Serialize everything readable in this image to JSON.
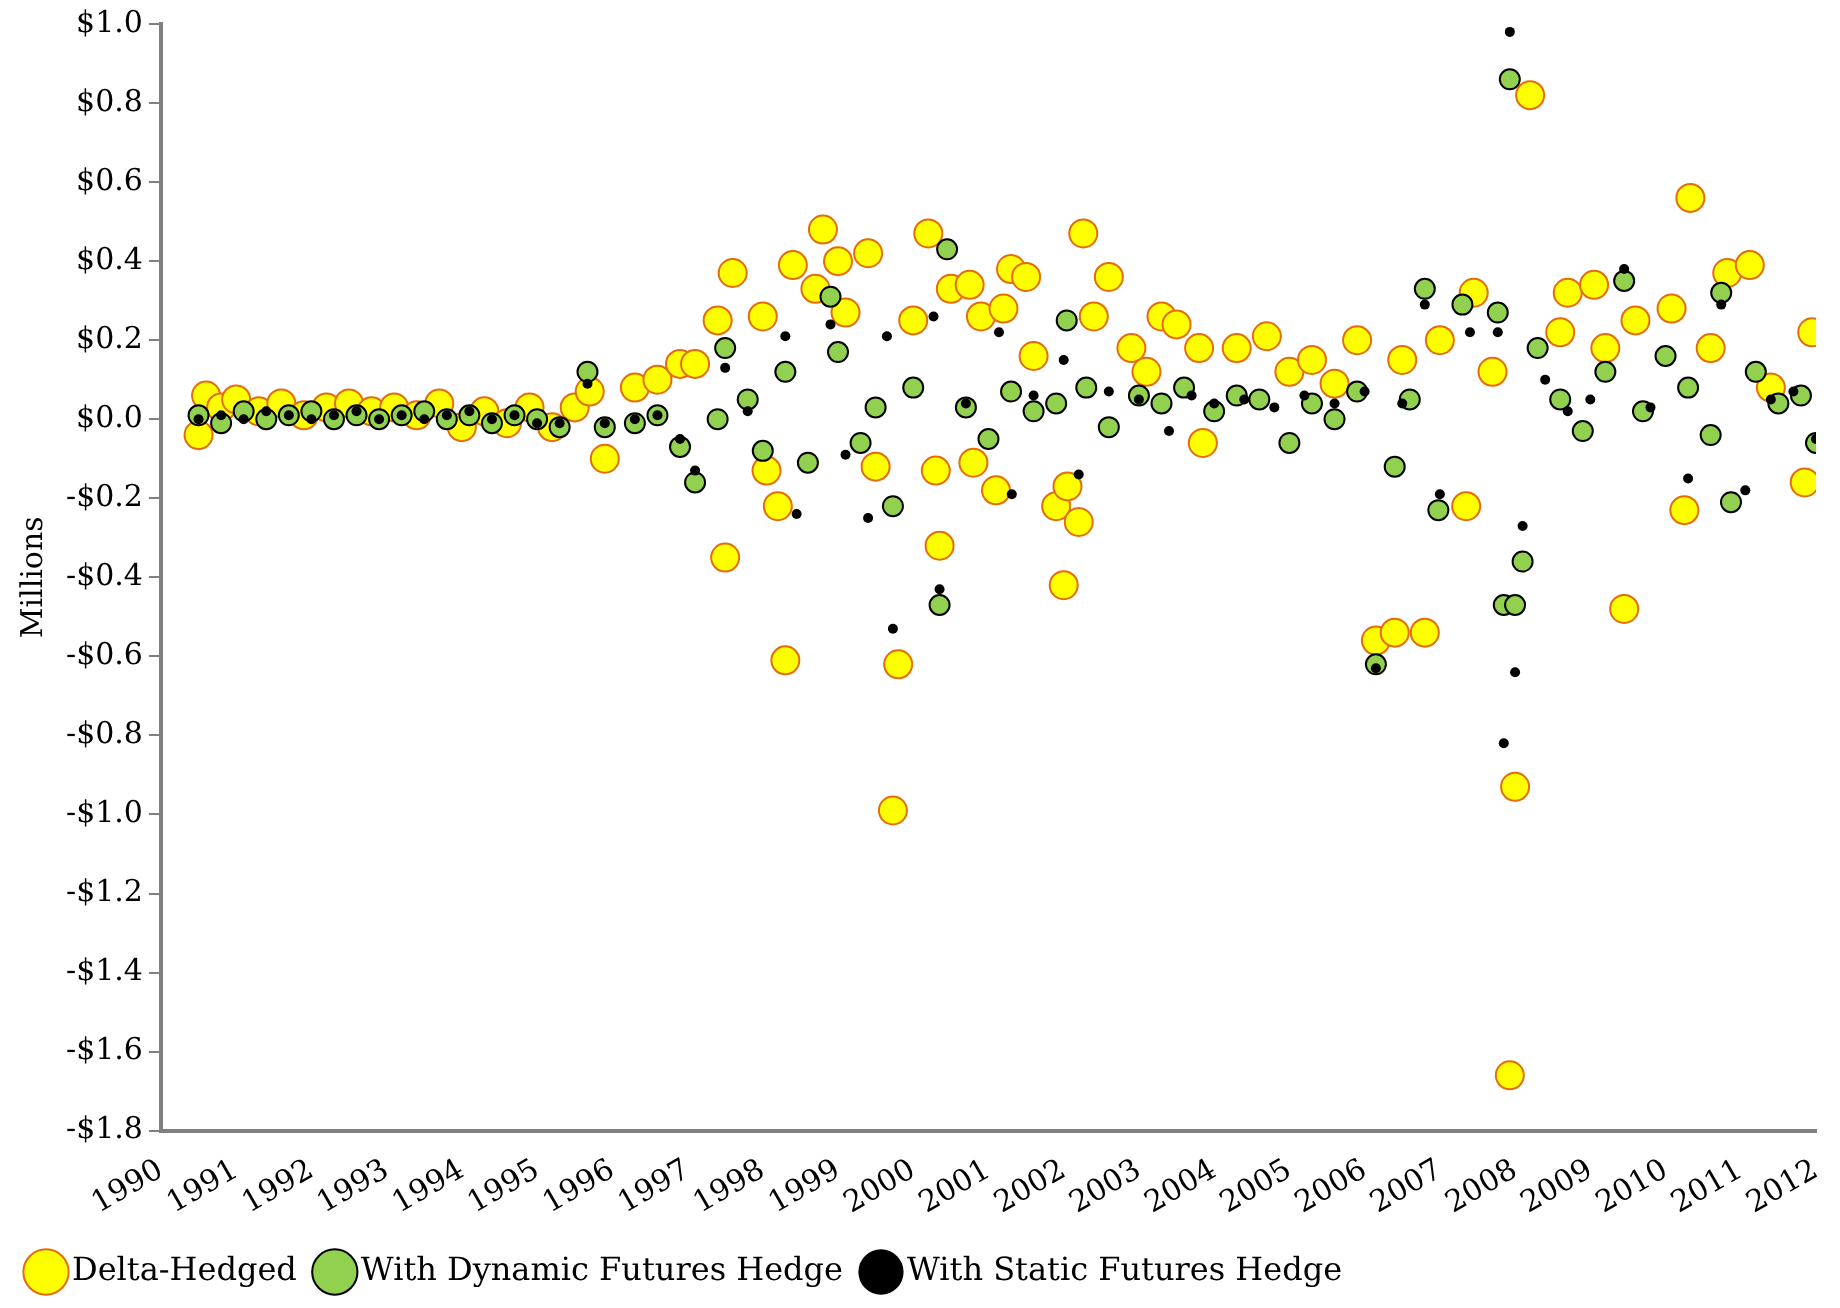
{
  "chart_data": {
    "type": "scatter",
    "ylabel": "Millions",
    "xlim": [
      1990,
      2012
    ],
    "xticks": [
      1990,
      1991,
      1992,
      1993,
      1994,
      1995,
      1996,
      1997,
      1998,
      1999,
      2000,
      2001,
      2002,
      2003,
      2004,
      2005,
      2006,
      2007,
      2008,
      2009,
      2010,
      2011,
      2012
    ],
    "ylim": [
      -1.8,
      1.0
    ],
    "yticks": [
      {
        "value": 1.0,
        "label": "$1.0"
      },
      {
        "value": 0.8,
        "label": "$0.8"
      },
      {
        "value": 0.6,
        "label": "$0.6"
      },
      {
        "value": 0.4,
        "label": "$0.4"
      },
      {
        "value": 0.2,
        "label": "$0.2"
      },
      {
        "value": 0,
        "label": "$0.0"
      },
      {
        "value": -0.2,
        "label": "-$0.2"
      },
      {
        "value": -0.4,
        "label": "-$0.4"
      },
      {
        "value": -0.6,
        "label": "-$0.6"
      },
      {
        "value": -0.8,
        "label": "-$0.8"
      },
      {
        "value": -1.0,
        "label": "-$1.0"
      },
      {
        "value": -1.2,
        "label": "-$1.2"
      },
      {
        "value": -1.4,
        "label": "-$1.4"
      },
      {
        "value": -1.6,
        "label": "-$1.6"
      },
      {
        "value": -1.8,
        "label": "-$1.8"
      }
    ],
    "grid": false,
    "legend": "bottom",
    "marker": "circle",
    "series": [
      {
        "name": "Delta-Hedged",
        "color": "#ffff00",
        "x": [
          1990.5,
          1990.6,
          1990.8,
          1991.0,
          1991.3,
          1991.6,
          1991.9,
          1992.2,
          1992.5,
          1992.8,
          1993.1,
          1993.4,
          1993.7,
          1994.0,
          1994.3,
          1994.6,
          1994.9,
          1995.2,
          1995.5,
          1995.7,
          1995.9,
          1996.3,
          1996.6,
          1996.9,
          1997.1,
          1997.4,
          1997.5,
          1997.6,
          1998.0,
          1998.05,
          1998.2,
          1998.3,
          1998.4,
          1998.7,
          1998.8,
          1999.0,
          1999.1,
          1999.4,
          1999.5,
          1999.73,
          1999.8,
          2000.0,
          2000.2,
          2000.3,
          2000.35,
          2000.5,
          2000.75,
          2000.8,
          2000.9,
          2001.1,
          2001.2,
          2001.3,
          2001.5,
          2001.6,
          2001.9,
          2002.0,
          2002.05,
          2002.2,
          2002.26,
          2002.4,
          2002.6,
          2002.9,
          2003.1,
          2003.3,
          2003.5,
          2003.8,
          2003.85,
          2004.3,
          2004.7,
          2005.0,
          2005.3,
          2005.6,
          2005.9,
          2006.15,
          2006.4,
          2006.5,
          2006.8,
          2007.0,
          2007.35,
          2007.45,
          2007.7,
          2007.93,
          2008.0,
          2008.2,
          2008.6,
          2008.7,
          2009.05,
          2009.2,
          2009.45,
          2009.6,
          2010.08,
          2010.25,
          2010.33,
          2010.6,
          2010.82,
          2011.12,
          2011.4,
          2011.85,
          2011.95
        ],
        "values": [
          -0.04,
          0.06,
          0.03,
          0.05,
          0.02,
          0.04,
          0.01,
          0.03,
          0.04,
          0.02,
          0.03,
          0.01,
          0.04,
          -0.02,
          0.02,
          -0.01,
          0.03,
          -0.02,
          0.03,
          0.07,
          -0.1,
          0.08,
          0.1,
          0.14,
          0.14,
          0.25,
          -0.35,
          0.37,
          0.26,
          -0.13,
          -0.22,
          -0.61,
          0.39,
          0.33,
          0.48,
          0.4,
          0.27,
          0.42,
          -0.12,
          -0.99,
          -0.62,
          0.25,
          0.47,
          -0.13,
          -0.32,
          0.33,
          0.34,
          -0.11,
          0.26,
          -0.18,
          0.28,
          0.38,
          0.36,
          0.16,
          -0.22,
          -0.42,
          -0.17,
          -0.26,
          0.47,
          0.26,
          0.36,
          0.18,
          0.12,
          0.26,
          0.24,
          0.18,
          -0.06,
          0.18,
          0.21,
          0.12,
          0.15,
          0.09,
          0.2,
          -0.56,
          -0.54,
          0.15,
          -0.54,
          0.2,
          -0.22,
          0.32,
          0.12,
          -1.66,
          -0.93,
          0.82,
          0.22,
          0.32,
          0.34,
          0.18,
          -0.48,
          0.25,
          0.28,
          -0.23,
          0.56,
          0.18,
          0.37,
          0.39,
          0.08,
          -0.16,
          0.22
        ]
      },
      {
        "name": "With Dynamic Futures Hedge",
        "color": "#92d050",
        "x": [
          1990.5,
          1990.8,
          1991.1,
          1991.4,
          1991.7,
          1992.0,
          1992.3,
          1992.6,
          1992.9,
          1993.2,
          1993.5,
          1993.8,
          1994.1,
          1994.4,
          1994.7,
          1995.0,
          1995.3,
          1995.67,
          1995.9,
          1996.3,
          1996.6,
          1996.9,
          1997.1,
          1997.4,
          1997.5,
          1997.8,
          1998.0,
          1998.3,
          1998.6,
          1998.9,
          1999.0,
          1999.3,
          1999.5,
          1999.73,
          2000.0,
          2000.35,
          2000.45,
          2000.7,
          2001.0,
          2001.3,
          2001.6,
          2001.9,
          2002.04,
          2002.3,
          2002.6,
          2003.0,
          2003.3,
          2003.6,
          2004.0,
          2004.3,
          2004.6,
          2005.0,
          2005.3,
          2005.6,
          2005.9,
          2006.15,
          2006.4,
          2006.6,
          2006.8,
          2006.98,
          2007.3,
          2007.77,
          2007.85,
          2007.93,
          2008.0,
          2008.1,
          2008.3,
          2008.6,
          2008.9,
          2009.2,
          2009.45,
          2009.7,
          2010.0,
          2010.3,
          2010.6,
          2010.74,
          2010.87,
          2011.2,
          2011.5,
          2011.8,
          2012.0
        ],
        "values": [
          0.01,
          -0.01,
          0.02,
          0.0,
          0.01,
          0.02,
          0.0,
          0.01,
          0.0,
          0.01,
          0.02,
          0.0,
          0.01,
          -0.01,
          0.01,
          0.0,
          -0.02,
          0.12,
          -0.02,
          -0.01,
          0.01,
          -0.07,
          -0.16,
          0.0,
          0.18,
          0.05,
          -0.08,
          0.12,
          -0.11,
          0.31,
          0.17,
          -0.06,
          0.03,
          -0.22,
          0.08,
          -0.47,
          0.43,
          0.03,
          -0.05,
          0.07,
          0.02,
          0.04,
          0.25,
          0.08,
          -0.02,
          0.06,
          0.04,
          0.08,
          0.02,
          0.06,
          0.05,
          -0.06,
          0.04,
          0.0,
          0.07,
          -0.62,
          -0.12,
          0.05,
          0.33,
          -0.23,
          0.29,
          0.27,
          -0.47,
          0.86,
          -0.47,
          -0.36,
          0.18,
          0.05,
          -0.03,
          0.12,
          0.35,
          0.02,
          0.16,
          0.08,
          -0.04,
          0.32,
          -0.21,
          0.12,
          0.04,
          0.06,
          -0.06
        ]
      },
      {
        "name": "With Static Futures Hedge",
        "color": "#000000",
        "x": [
          1990.5,
          1990.8,
          1991.1,
          1991.4,
          1991.7,
          1992.0,
          1992.3,
          1992.6,
          1992.9,
          1993.2,
          1993.5,
          1993.8,
          1994.1,
          1994.4,
          1994.7,
          1995.0,
          1995.3,
          1995.67,
          1995.9,
          1996.3,
          1996.6,
          1996.9,
          1997.1,
          1997.5,
          1997.8,
          1998.3,
          1998.45,
          1998.9,
          1999.1,
          1999.4,
          1999.65,
          1999.73,
          2000.27,
          2000.35,
          2000.7,
          2001.14,
          2001.31,
          2001.6,
          2002.0,
          2002.2,
          2002.6,
          2003.0,
          2003.4,
          2003.7,
          2004.0,
          2004.4,
          2004.8,
          2005.2,
          2005.6,
          2006.0,
          2006.15,
          2006.5,
          2006.8,
          2007.0,
          2007.4,
          2007.77,
          2007.85,
          2007.93,
          2008.0,
          2008.1,
          2008.4,
          2008.7,
          2009.0,
          2009.45,
          2009.8,
          2010.3,
          2010.74,
          2011.06,
          2011.4,
          2011.7,
          2012.0
        ],
        "values": [
          0.0,
          0.01,
          0.0,
          0.02,
          0.01,
          0.0,
          0.01,
          0.02,
          0.0,
          0.01,
          0.0,
          0.01,
          0.02,
          0.0,
          0.01,
          -0.01,
          -0.01,
          0.09,
          -0.01,
          0.0,
          0.01,
          -0.05,
          -0.13,
          0.13,
          0.02,
          0.21,
          -0.24,
          0.24,
          -0.09,
          -0.25,
          0.21,
          -0.53,
          0.26,
          -0.43,
          0.04,
          0.22,
          -0.19,
          0.06,
          0.15,
          -0.14,
          0.07,
          0.05,
          -0.03,
          0.06,
          0.04,
          0.05,
          0.03,
          0.06,
          0.04,
          0.07,
          -0.63,
          0.04,
          0.29,
          -0.19,
          0.22,
          0.22,
          -0.82,
          0.98,
          -0.64,
          -0.27,
          0.1,
          0.02,
          0.05,
          0.38,
          0.03,
          -0.15,
          0.29,
          -0.18,
          0.05,
          0.07,
          -0.05
        ]
      }
    ]
  }
}
